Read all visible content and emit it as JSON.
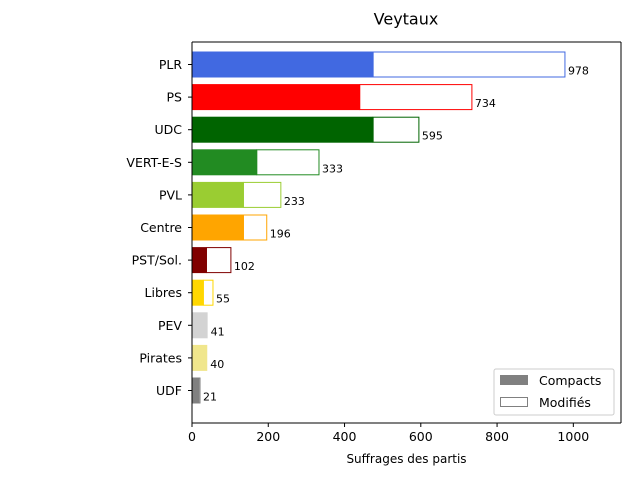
{
  "chart_data": {
    "type": "bar",
    "orientation": "horizontal",
    "stacked": true,
    "title": "Veytaux",
    "xlabel": "Suffrages des partis",
    "ylabel": "",
    "xlim": [
      0,
      1125
    ],
    "xticks": [
      0,
      200,
      400,
      600,
      800,
      1000
    ],
    "grid": false,
    "legend_position": "lower-right",
    "categories": [
      "PLR",
      "PS",
      "UDC",
      "VERT-E-S",
      "PVL",
      "Centre",
      "PST/Sol.",
      "Libres",
      "PEV",
      "Pirates",
      "UDF"
    ],
    "colors": [
      "#4169e1",
      "#ff0000",
      "#006400",
      "#228b22",
      "#9acd32",
      "#ffa500",
      "#800000",
      "#ffd700",
      "#d3d3d3",
      "#f0e68c",
      "#808080"
    ],
    "series": [
      {
        "name": "Compacts",
        "values": [
          475,
          440,
          475,
          170,
          135,
          135,
          38,
          30,
          41,
          40,
          18
        ]
      },
      {
        "name": "Modifiés",
        "values": [
          503,
          294,
          120,
          163,
          98,
          61,
          64,
          25,
          0,
          0,
          3
        ]
      }
    ],
    "totals": [
      978,
      734,
      595,
      333,
      233,
      196,
      102,
      55,
      41,
      40,
      21
    ],
    "legend": [
      {
        "label": "Compacts",
        "color": "#808080",
        "style": "filled"
      },
      {
        "label": "Modifiés",
        "color": "#808080",
        "style": "outline"
      }
    ]
  }
}
